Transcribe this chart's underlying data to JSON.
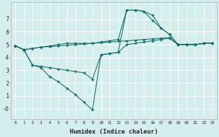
{
  "xlabel": "Humidex (Indice chaleur)",
  "bg_color": "#d4eeee",
  "line_color": "#1a6b6b",
  "grid_color": "#ffffff",
  "xlim": [
    -0.5,
    23.5
  ],
  "ylim": [
    -0.8,
    8.3
  ],
  "xticks": [
    0,
    1,
    2,
    3,
    4,
    5,
    6,
    7,
    8,
    9,
    10,
    11,
    12,
    13,
    14,
    15,
    16,
    17,
    18,
    19,
    20,
    21,
    22,
    23
  ],
  "yticks": [
    0,
    1,
    2,
    3,
    4,
    5,
    6,
    7
  ],
  "ytick_labels": [
    "-0",
    "1",
    "2",
    "3",
    "4",
    "5",
    "6",
    "7"
  ],
  "lines": [
    {
      "x": [
        0,
        1,
        2,
        3,
        4,
        5,
        6,
        7,
        8,
        9,
        10,
        11,
        12,
        13,
        14,
        15,
        16,
        17,
        18,
        19,
        20,
        21,
        22,
        23
      ],
      "y": [
        4.9,
        4.6,
        4.7,
        4.8,
        4.9,
        5.0,
        5.1,
        5.1,
        5.1,
        5.1,
        5.2,
        5.3,
        5.4,
        7.7,
        7.7,
        7.6,
        7.3,
        6.3,
        5.8,
        5.0,
        5.0,
        5.0,
        5.1,
        5.1
      ]
    },
    {
      "x": [
        0,
        1,
        2,
        3,
        4,
        5,
        6,
        7,
        8,
        9,
        10,
        11,
        12,
        13,
        14,
        15,
        16,
        17,
        18,
        19,
        20,
        21,
        22,
        23
      ],
      "y": [
        4.9,
        4.6,
        4.7,
        4.8,
        4.85,
        4.9,
        4.95,
        5.0,
        5.05,
        5.1,
        5.15,
        5.2,
        5.25,
        5.3,
        5.35,
        5.4,
        5.45,
        5.5,
        5.55,
        5.0,
        5.0,
        5.0,
        5.1,
        5.1
      ]
    },
    {
      "x": [
        0,
        1,
        2,
        3,
        4,
        5,
        6,
        7,
        8,
        9,
        10,
        11,
        12,
        13,
        14,
        15,
        16,
        17,
        18,
        19,
        20,
        21,
        22,
        23
      ],
      "y": [
        4.9,
        4.6,
        3.4,
        3.3,
        3.2,
        3.1,
        3.0,
        2.9,
        2.8,
        2.3,
        4.2,
        4.3,
        4.4,
        7.7,
        7.7,
        7.6,
        6.9,
        6.3,
        5.8,
        5.0,
        5.0,
        5.0,
        5.1,
        5.1
      ]
    },
    {
      "x": [
        0,
        1,
        2,
        3,
        4,
        5,
        6,
        7,
        8,
        9,
        10,
        11,
        12,
        13,
        14,
        15,
        16,
        17,
        18,
        19,
        20,
        21,
        22,
        23
      ],
      "y": [
        4.9,
        4.6,
        3.4,
        3.2,
        2.5,
        2.1,
        1.6,
        1.1,
        0.5,
        -0.1,
        4.2,
        4.3,
        4.4,
        5.0,
        5.1,
        5.2,
        5.3,
        5.4,
        5.5,
        5.0,
        5.0,
        5.0,
        5.1,
        5.1
      ]
    }
  ]
}
